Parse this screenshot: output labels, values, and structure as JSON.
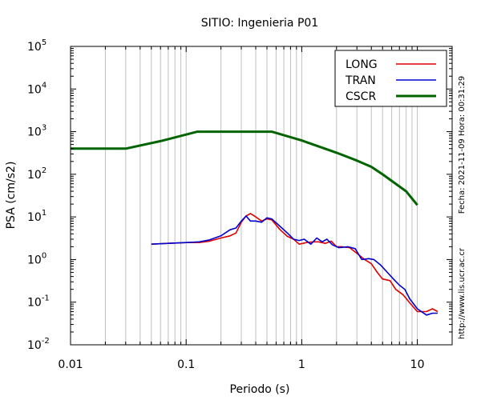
{
  "chart_data": {
    "type": "line",
    "title": "SITIO: Ingenieria P01",
    "xlabel": "Periodo (s)",
    "ylabel": "PSA (cm/s2)",
    "xscale": "log",
    "yscale": "log",
    "xlim": [
      0.01,
      20
    ],
    "ylim": [
      0.01,
      100000
    ],
    "grid": "vertical minor and major lines",
    "x_ticks": [
      {
        "value": 0.01,
        "label": "0.01"
      },
      {
        "value": 0.1,
        "label": "0.1"
      },
      {
        "value": 1,
        "label": "1"
      },
      {
        "value": 10,
        "label": "10"
      }
    ],
    "y_ticks": [
      {
        "value": 0.01,
        "base": "10",
        "exp": "-2"
      },
      {
        "value": 0.1,
        "base": "10",
        "exp": "-1"
      },
      {
        "value": 1,
        "base": "10",
        "exp": "0"
      },
      {
        "value": 10,
        "base": "10",
        "exp": "1"
      },
      {
        "value": 100,
        "base": "10",
        "exp": "2"
      },
      {
        "value": 1000,
        "base": "10",
        "exp": "3"
      },
      {
        "value": 10000,
        "base": "10",
        "exp": "4"
      },
      {
        "value": 100000,
        "base": "10",
        "exp": "5"
      }
    ],
    "legend_position": "top-right",
    "series": [
      {
        "name": "LONG",
        "color": "#e00000",
        "points": [
          [
            0.05,
            2.3
          ],
          [
            0.07,
            2.4
          ],
          [
            0.1,
            2.5
          ],
          [
            0.13,
            2.5
          ],
          [
            0.16,
            2.7
          ],
          [
            0.2,
            3.2
          ],
          [
            0.24,
            3.6
          ],
          [
            0.27,
            4.2
          ],
          [
            0.3,
            7.5
          ],
          [
            0.33,
            10.5
          ],
          [
            0.36,
            12
          ],
          [
            0.4,
            10
          ],
          [
            0.45,
            8
          ],
          [
            0.5,
            9
          ],
          [
            0.55,
            8.5
          ],
          [
            0.65,
            5
          ],
          [
            0.75,
            3.5
          ],
          [
            0.85,
            3.0
          ],
          [
            0.95,
            2.3
          ],
          [
            1.1,
            2.5
          ],
          [
            1.25,
            2.6
          ],
          [
            1.4,
            2.6
          ],
          [
            1.6,
            2.4
          ],
          [
            1.8,
            2.7
          ],
          [
            2.0,
            2.0
          ],
          [
            2.2,
            2.0
          ],
          [
            2.6,
            1.9
          ],
          [
            3.0,
            1.4
          ],
          [
            3.5,
            1.0
          ],
          [
            4.0,
            0.8
          ],
          [
            4.5,
            0.5
          ],
          [
            5.0,
            0.35
          ],
          [
            5.8,
            0.32
          ],
          [
            6.5,
            0.2
          ],
          [
            7.5,
            0.15
          ],
          [
            8.5,
            0.1
          ],
          [
            10,
            0.06
          ],
          [
            12,
            0.06
          ],
          [
            13.5,
            0.07
          ],
          [
            15,
            0.06
          ]
        ]
      },
      {
        "name": "TRAN",
        "color": "#0000d0",
        "points": [
          [
            0.05,
            2.3
          ],
          [
            0.07,
            2.4
          ],
          [
            0.1,
            2.5
          ],
          [
            0.13,
            2.6
          ],
          [
            0.16,
            2.9
          ],
          [
            0.2,
            3.6
          ],
          [
            0.24,
            5
          ],
          [
            0.27,
            5.5
          ],
          [
            0.3,
            8
          ],
          [
            0.33,
            10.5
          ],
          [
            0.36,
            8
          ],
          [
            0.4,
            8
          ],
          [
            0.45,
            7.5
          ],
          [
            0.5,
            9.5
          ],
          [
            0.55,
            9
          ],
          [
            0.65,
            6
          ],
          [
            0.75,
            4.2
          ],
          [
            0.85,
            3.0
          ],
          [
            0.95,
            2.8
          ],
          [
            1.05,
            3.0
          ],
          [
            1.2,
            2.3
          ],
          [
            1.35,
            3.2
          ],
          [
            1.5,
            2.6
          ],
          [
            1.65,
            3.0
          ],
          [
            1.85,
            2.2
          ],
          [
            2.1,
            1.9
          ],
          [
            2.5,
            2.0
          ],
          [
            2.9,
            1.8
          ],
          [
            3.3,
            1.0
          ],
          [
            3.8,
            1.05
          ],
          [
            4.2,
            1.0
          ],
          [
            4.8,
            0.75
          ],
          [
            5.5,
            0.5
          ],
          [
            6.2,
            0.35
          ],
          [
            7.0,
            0.25
          ],
          [
            7.8,
            0.2
          ],
          [
            8.6,
            0.12
          ],
          [
            10,
            0.07
          ],
          [
            12,
            0.05
          ],
          [
            13.5,
            0.055
          ],
          [
            15,
            0.055
          ]
        ]
      },
      {
        "name": "CSCR",
        "color": "#006400",
        "points": [
          [
            0.01,
            400
          ],
          [
            0.03,
            400
          ],
          [
            0.06,
            600
          ],
          [
            0.125,
            1000
          ],
          [
            0.55,
            1000
          ],
          [
            1.0,
            620
          ],
          [
            1.5,
            420
          ],
          [
            2.0,
            320
          ],
          [
            3.0,
            210
          ],
          [
            4.0,
            150
          ],
          [
            5.0,
            100
          ],
          [
            6.0,
            70
          ],
          [
            8.0,
            40
          ],
          [
            10.0,
            19
          ]
        ]
      }
    ],
    "side_annotations": {
      "date_time": "Fecha: 2021-11-09 Hora: 00:31:29",
      "url": "http://www.lis.ucr.ac.cr"
    }
  }
}
